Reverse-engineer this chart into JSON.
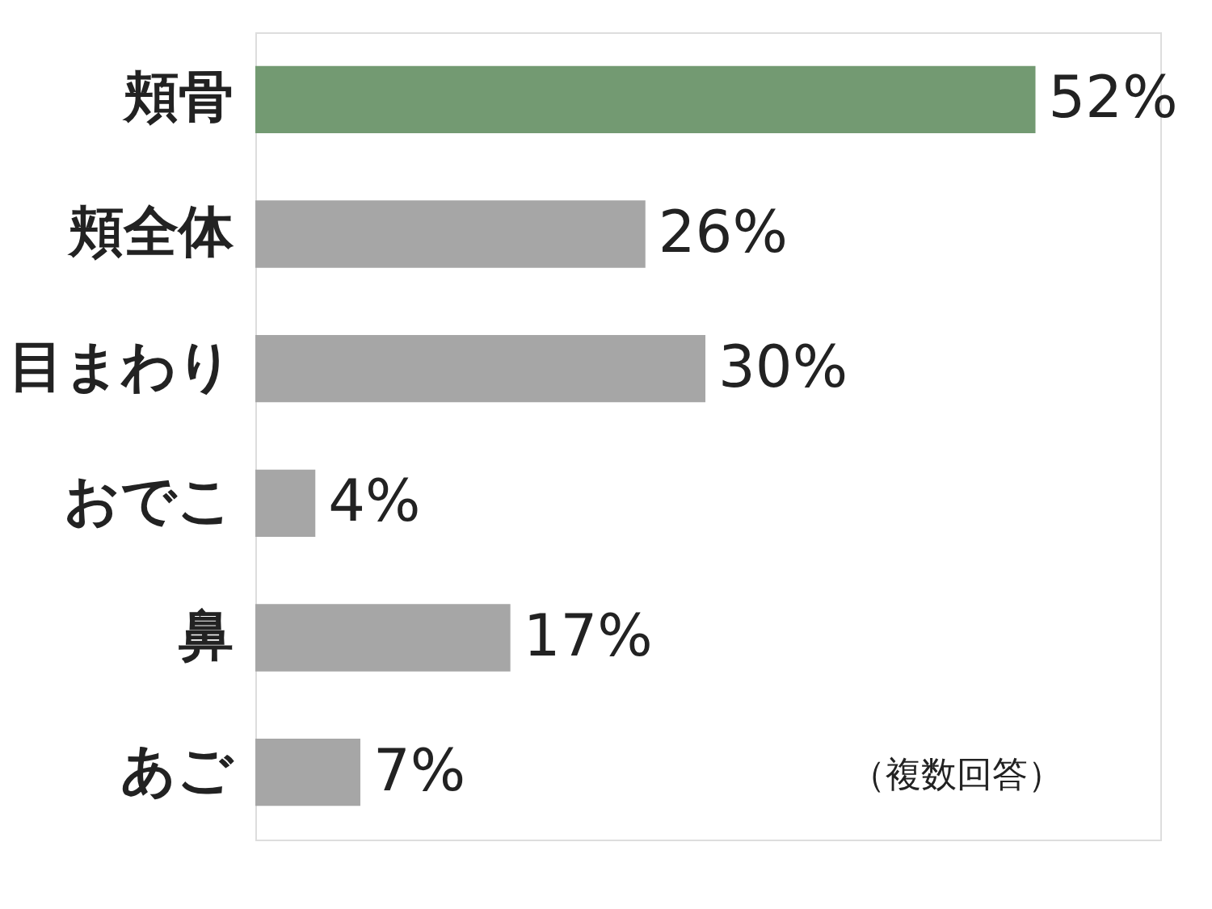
{
  "chart_data": {
    "type": "bar",
    "orientation": "horizontal",
    "categories": [
      "頬骨",
      "頬全体",
      "目まわり",
      "おでこ",
      "鼻",
      "あご"
    ],
    "values": [
      52,
      26,
      30,
      4,
      17,
      7
    ],
    "colors": [
      "#739a72",
      "#a6a6a6",
      "#a6a6a6",
      "#a6a6a6",
      "#a6a6a6",
      "#a6a6a6"
    ],
    "value_labels": [
      "52%",
      "26%",
      "30%",
      "4%",
      "17%",
      "7%"
    ],
    "annotations": [
      "（複数回答）"
    ]
  }
}
